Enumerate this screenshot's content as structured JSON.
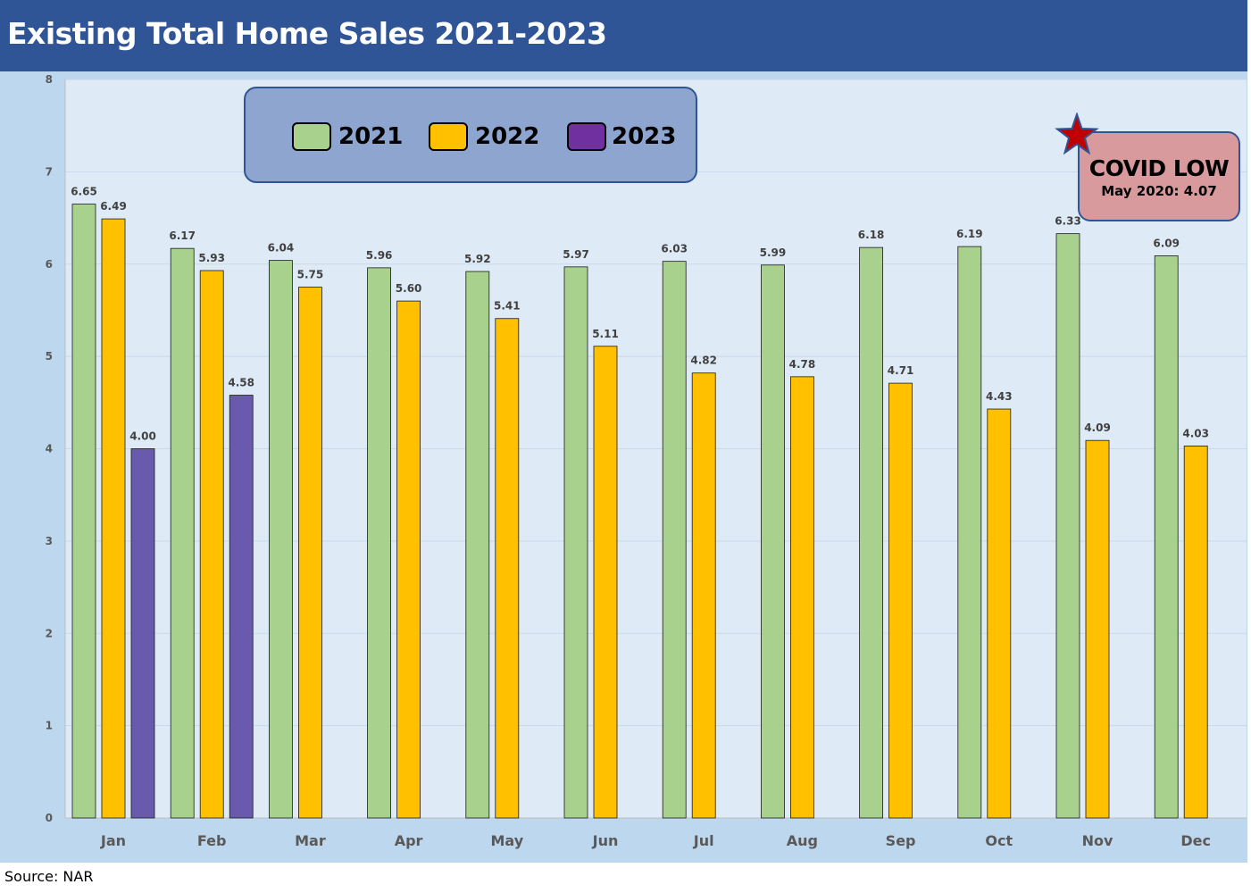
{
  "header": {
    "title": "Existing Total Home Sales 2021-2023"
  },
  "source": "Source: NAR",
  "legend": [
    {
      "label": "2021",
      "color": "#a9d18e"
    },
    {
      "label": "2022",
      "color": "#ffc000"
    },
    {
      "label": "2023",
      "color": "#7030a0"
    }
  ],
  "annotation": {
    "title": "COVID LOW",
    "subtitle": "May 2020: 4.07",
    "icon": "star-icon"
  },
  "chart_data": {
    "type": "bar",
    "title": "Existing Total Home Sales 2021-2023",
    "xlabel": "",
    "ylabel": "",
    "ylim": [
      0,
      8
    ],
    "yticks": [
      0,
      1,
      2,
      3,
      4,
      5,
      6,
      7,
      8
    ],
    "grid": true,
    "legend_position": "top-left",
    "categories": [
      "Jan",
      "Feb",
      "Mar",
      "Apr",
      "May",
      "Jun",
      "Jul",
      "Aug",
      "Sep",
      "Oct",
      "Nov",
      "Dec"
    ],
    "series": [
      {
        "name": "2021",
        "color": "#a9d18e",
        "values": [
          6.65,
          6.17,
          6.04,
          5.96,
          5.92,
          5.97,
          6.03,
          5.99,
          6.18,
          6.19,
          6.33,
          6.09
        ]
      },
      {
        "name": "2022",
        "color": "#ffc000",
        "values": [
          6.49,
          5.93,
          5.75,
          5.6,
          5.41,
          5.11,
          4.82,
          4.78,
          4.71,
          4.43,
          4.09,
          4.03
        ]
      },
      {
        "name": "2023",
        "color": "#6a5aae",
        "values": [
          4.0,
          4.58,
          null,
          null,
          null,
          null,
          null,
          null,
          null,
          null,
          null,
          null
        ]
      }
    ],
    "data_labels": [
      [
        "6.65",
        "6.17",
        "6.04",
        "5.96",
        "5.92",
        "5.97",
        "6.03",
        "5.99",
        "6.18",
        "6.19",
        "6.33",
        "6.09"
      ],
      [
        "6.49",
        "5.93",
        "5.75",
        "5.60",
        "5.41",
        "5.11",
        "4.82",
        "4.78",
        "4.71",
        "4.43",
        "4.09",
        "4.03"
      ],
      [
        "4.00",
        "4.58",
        null,
        null,
        null,
        null,
        null,
        null,
        null,
        null,
        null,
        null
      ]
    ]
  }
}
